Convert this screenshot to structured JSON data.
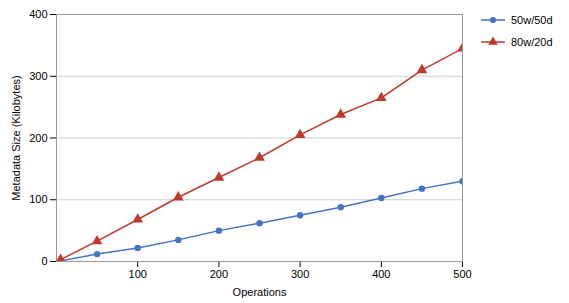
{
  "chart_data": {
    "type": "line",
    "xlabel": "Operations",
    "ylabel": "Metadata Size (Kilobytes)",
    "x": [
      5,
      50,
      100,
      150,
      200,
      250,
      300,
      350,
      400,
      450,
      500
    ],
    "series": [
      {
        "name": "50w/50d",
        "color": "#4472c4",
        "marker": "circle",
        "line_style": "solid",
        "values": [
          1,
          12,
          22,
          35,
          50,
          62,
          75,
          88,
          103,
          118,
          130
        ]
      },
      {
        "name": "80w/20d",
        "color": "#c0392b",
        "marker": "triangle",
        "line_style": "solid",
        "values": [
          3,
          33,
          68,
          104,
          136,
          168,
          205,
          238,
          265,
          310,
          345
        ]
      }
    ],
    "xlim": [
      0,
      500
    ],
    "ylim": [
      0,
      400
    ],
    "xticks": [
      100,
      200,
      300,
      400,
      500
    ],
    "yticks": [
      0,
      100,
      200,
      300,
      400
    ],
    "grid": "y",
    "legend": "upper right"
  }
}
